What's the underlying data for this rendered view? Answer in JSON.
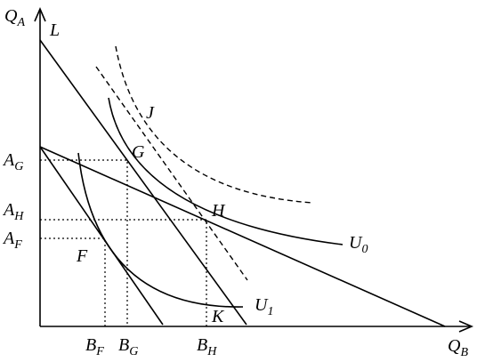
{
  "axes": {
    "y": {
      "main": "Q",
      "sub": "A"
    },
    "x": {
      "main": "Q",
      "sub": "B"
    }
  },
  "points": {
    "L": "L",
    "J": "J",
    "G": "G",
    "H": "H",
    "F": "F",
    "K": "K"
  },
  "curves": {
    "U0": {
      "main": "U",
      "sub": "0"
    },
    "U1": {
      "main": "U",
      "sub": "1"
    }
  },
  "y_marks": {
    "AG": {
      "main": "A",
      "sub": "G"
    },
    "AH": {
      "main": "A",
      "sub": "H"
    },
    "AF": {
      "main": "A",
      "sub": "F"
    }
  },
  "x_marks": {
    "BF": {
      "main": "B",
      "sub": "F"
    },
    "BG": {
      "main": "B",
      "sub": "G"
    },
    "BH": {
      "main": "B",
      "sub": "H"
    }
  }
}
